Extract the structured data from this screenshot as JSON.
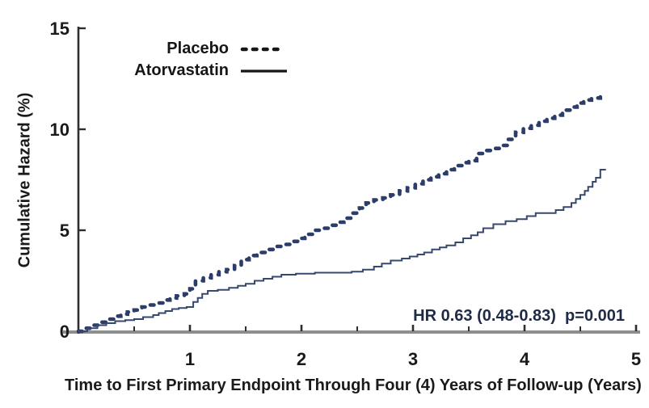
{
  "chart_data": {
    "type": "line",
    "subtype": "step",
    "title": "",
    "xlabel": "Time to First Primary Endpoint Through Four (4) Years of Follow-up (Years)",
    "ylabel": "Cumulative Hazard (%)",
    "xlim": [
      0,
      5
    ],
    "ylim": [
      0,
      15
    ],
    "grid": false,
    "legend_position": "inside-top-left",
    "annotation": "HR 0.63 (0.48-0.83)  p=0.001",
    "x_axis": {
      "major_ticks": [
        1,
        2,
        3,
        4,
        5
      ],
      "major_tick_labels": [
        "1",
        "2",
        "3",
        "4",
        "5"
      ],
      "minor_ticks": [
        0.5,
        1.5,
        2.5,
        3.5,
        4.5
      ]
    },
    "y_axis": {
      "ticks": [
        0,
        5,
        10,
        15
      ],
      "tick_labels": [
        "0",
        "5",
        "10",
        "15"
      ]
    },
    "colors": {
      "curve_placebo": "#2c3d6a",
      "curve_atorvastatin": "#37486f",
      "x_axis_line": "#8e8e8e",
      "y_axis_line": "#2e2e2e",
      "tick_mark": "#2e2e2e",
      "text": "#1a1a1a",
      "annotation_text": "#1f2a46"
    },
    "series": [
      {
        "name": "Placebo",
        "style": "dashed",
        "color": "#2c3d6a",
        "points": [
          [
            0,
            0
          ],
          [
            0.06,
            0.15
          ],
          [
            0.12,
            0.3
          ],
          [
            0.18,
            0.45
          ],
          [
            0.25,
            0.6
          ],
          [
            0.32,
            0.75
          ],
          [
            0.38,
            0.85
          ],
          [
            0.44,
            0.95
          ],
          [
            0.5,
            1.05
          ],
          [
            0.57,
            1.2
          ],
          [
            0.63,
            1.3
          ],
          [
            0.7,
            1.4
          ],
          [
            0.76,
            1.55
          ],
          [
            0.82,
            1.65
          ],
          [
            0.88,
            1.75
          ],
          [
            0.95,
            1.85
          ],
          [
            1.0,
            2.1
          ],
          [
            1.05,
            2.5
          ],
          [
            1.12,
            2.65
          ],
          [
            1.19,
            2.8
          ],
          [
            1.26,
            2.95
          ],
          [
            1.33,
            3.05
          ],
          [
            1.4,
            3.25
          ],
          [
            1.46,
            3.55
          ],
          [
            1.53,
            3.75
          ],
          [
            1.6,
            3.9
          ],
          [
            1.68,
            4.05
          ],
          [
            1.75,
            4.2
          ],
          [
            1.83,
            4.3
          ],
          [
            1.9,
            4.45
          ],
          [
            1.97,
            4.6
          ],
          [
            2.03,
            4.8
          ],
          [
            2.1,
            5.0
          ],
          [
            2.17,
            5.1
          ],
          [
            2.25,
            5.25
          ],
          [
            2.32,
            5.4
          ],
          [
            2.38,
            5.6
          ],
          [
            2.45,
            5.85
          ],
          [
            2.52,
            6.1
          ],
          [
            2.58,
            6.35
          ],
          [
            2.65,
            6.5
          ],
          [
            2.73,
            6.6
          ],
          [
            2.8,
            6.75
          ],
          [
            2.88,
            6.95
          ],
          [
            2.95,
            7.1
          ],
          [
            3.02,
            7.3
          ],
          [
            3.09,
            7.5
          ],
          [
            3.16,
            7.65
          ],
          [
            3.23,
            7.8
          ],
          [
            3.3,
            8.0
          ],
          [
            3.37,
            8.2
          ],
          [
            3.44,
            8.35
          ],
          [
            3.5,
            8.45
          ],
          [
            3.57,
            8.8
          ],
          [
            3.64,
            8.95
          ],
          [
            3.71,
            9.05
          ],
          [
            3.78,
            9.2
          ],
          [
            3.85,
            9.5
          ],
          [
            3.92,
            9.85
          ],
          [
            3.99,
            10.05
          ],
          [
            4.06,
            10.2
          ],
          [
            4.13,
            10.4
          ],
          [
            4.2,
            10.55
          ],
          [
            4.27,
            10.7
          ],
          [
            4.34,
            10.95
          ],
          [
            4.41,
            11.1
          ],
          [
            4.47,
            11.3
          ],
          [
            4.53,
            11.45
          ],
          [
            4.6,
            11.55
          ],
          [
            4.68,
            11.6
          ]
        ]
      },
      {
        "name": "Atorvastatin",
        "style": "solid",
        "color": "#37486f",
        "points": [
          [
            0,
            0
          ],
          [
            0.08,
            0.15
          ],
          [
            0.17,
            0.3
          ],
          [
            0.25,
            0.4
          ],
          [
            0.33,
            0.5
          ],
          [
            0.42,
            0.55
          ],
          [
            0.5,
            0.6
          ],
          [
            0.58,
            0.7
          ],
          [
            0.67,
            0.8
          ],
          [
            0.72,
            0.9
          ],
          [
            0.78,
            1.0
          ],
          [
            0.84,
            1.1
          ],
          [
            0.9,
            1.15
          ],
          [
            0.97,
            1.2
          ],
          [
            1.03,
            1.45
          ],
          [
            1.07,
            1.65
          ],
          [
            1.11,
            1.85
          ],
          [
            1.16,
            2.0
          ],
          [
            1.25,
            2.05
          ],
          [
            1.35,
            2.15
          ],
          [
            1.43,
            2.25
          ],
          [
            1.5,
            2.35
          ],
          [
            1.58,
            2.5
          ],
          [
            1.66,
            2.6
          ],
          [
            1.74,
            2.7
          ],
          [
            1.82,
            2.8
          ],
          [
            1.95,
            2.85
          ],
          [
            2.12,
            2.9
          ],
          [
            2.45,
            2.95
          ],
          [
            2.55,
            3.05
          ],
          [
            2.65,
            3.2
          ],
          [
            2.72,
            3.35
          ],
          [
            2.8,
            3.5
          ],
          [
            2.9,
            3.6
          ],
          [
            2.97,
            3.7
          ],
          [
            3.04,
            3.8
          ],
          [
            3.1,
            3.9
          ],
          [
            3.17,
            4.05
          ],
          [
            3.24,
            4.15
          ],
          [
            3.3,
            4.25
          ],
          [
            3.38,
            4.4
          ],
          [
            3.45,
            4.6
          ],
          [
            3.52,
            4.75
          ],
          [
            3.58,
            4.9
          ],
          [
            3.63,
            5.1
          ],
          [
            3.72,
            5.3
          ],
          [
            3.83,
            5.45
          ],
          [
            3.93,
            5.55
          ],
          [
            4.02,
            5.7
          ],
          [
            4.1,
            5.85
          ],
          [
            4.28,
            6.0
          ],
          [
            4.35,
            6.15
          ],
          [
            4.42,
            6.35
          ],
          [
            4.46,
            6.55
          ],
          [
            4.5,
            6.75
          ],
          [
            4.54,
            6.95
          ],
          [
            4.57,
            7.15
          ],
          [
            4.61,
            7.4
          ],
          [
            4.64,
            7.6
          ],
          [
            4.68,
            8.0
          ],
          [
            4.73,
            8.0
          ]
        ]
      }
    ]
  },
  "legend": {
    "placebo_label": "Placebo",
    "atorvastatin_label": "Atorvastatin"
  }
}
